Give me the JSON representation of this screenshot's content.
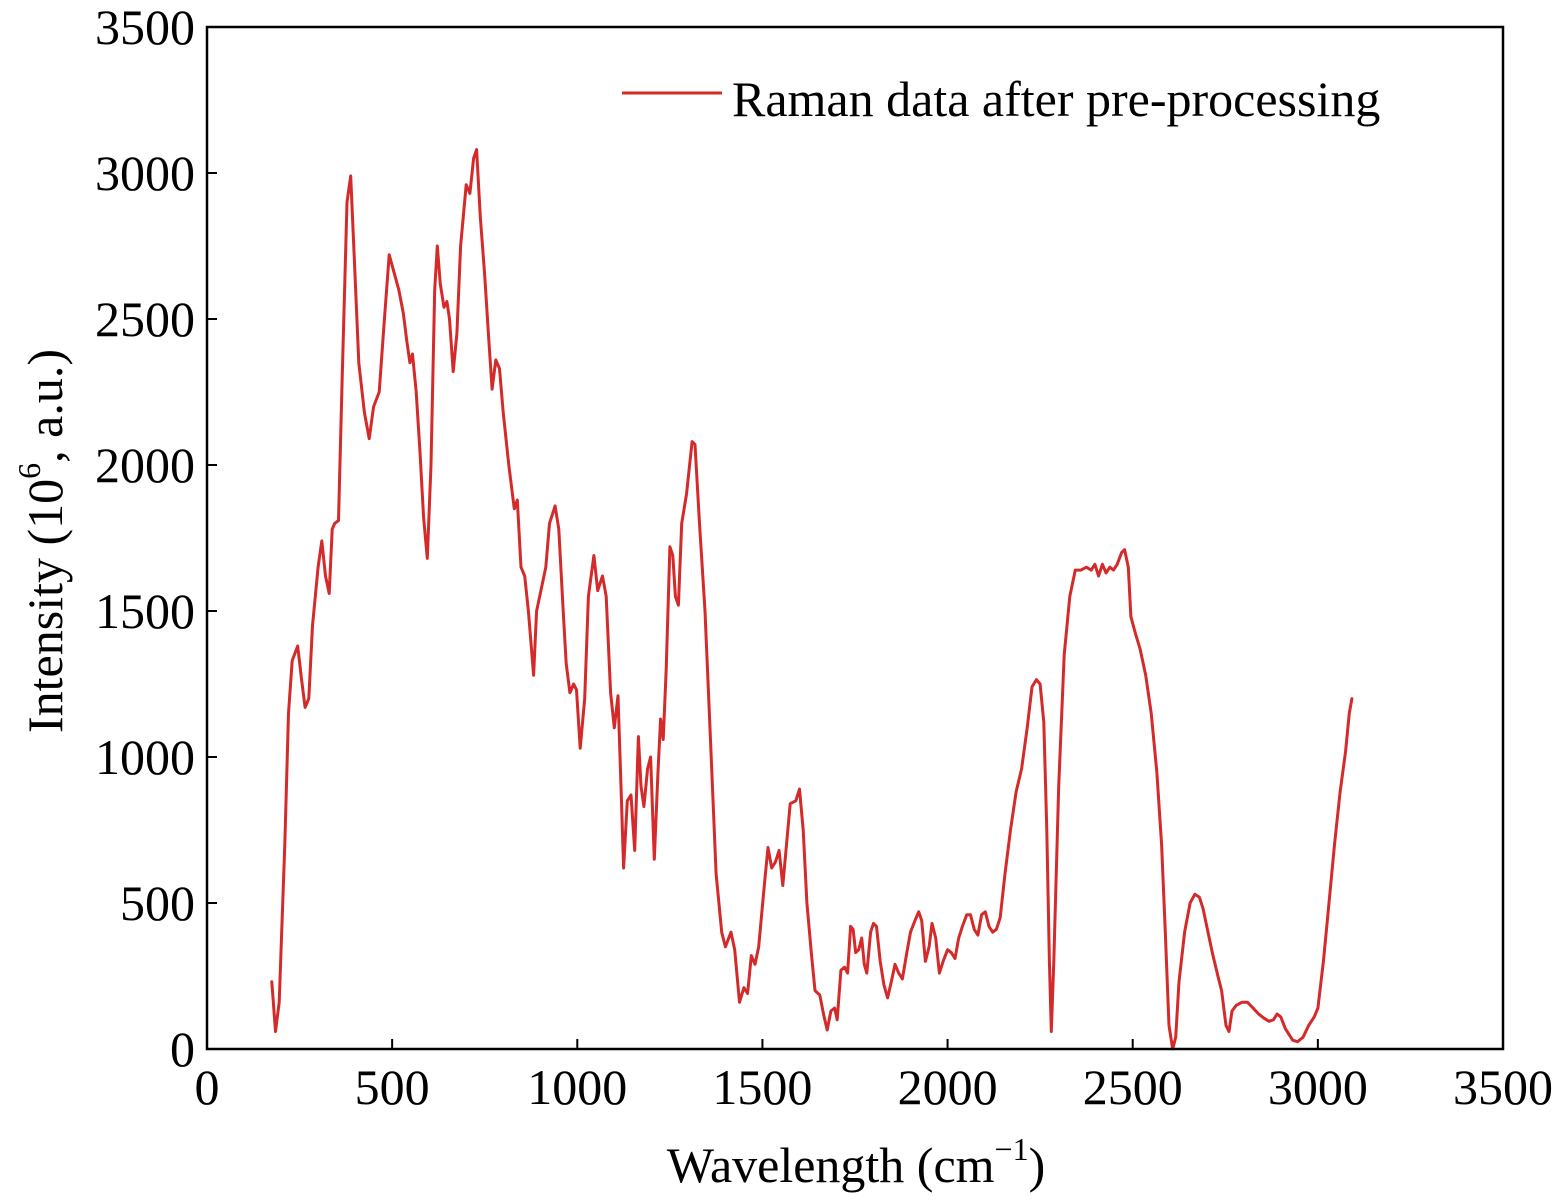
{
  "chart_data": {
    "type": "line",
    "xlabel": "Wavelength (cm",
    "xlabel_sup": "−1",
    "xlabel_end": ")",
    "ylabel": "Intensity (10",
    "ylabel_sup": "6",
    "ylabel_end": ", a.u.)",
    "xlim": [
      0,
      3500
    ],
    "ylim": [
      0,
      3500
    ],
    "xticks": [
      0,
      500,
      1000,
      1500,
      2000,
      2500,
      3000,
      3500
    ],
    "yticks": [
      0,
      500,
      1000,
      1500,
      2000,
      2500,
      3000,
      3500
    ],
    "grid": false,
    "legend_position": "top-right",
    "series": [
      {
        "name": "Raman data after pre-processing",
        "color": "#d42a2a",
        "points": [
          [
            175,
            230
          ],
          [
            185,
            60
          ],
          [
            195,
            160
          ],
          [
            210,
            700
          ],
          [
            220,
            1150
          ],
          [
            230,
            1330
          ],
          [
            245,
            1380
          ],
          [
            255,
            1270
          ],
          [
            265,
            1170
          ],
          [
            275,
            1200
          ],
          [
            285,
            1450
          ],
          [
            300,
            1650
          ],
          [
            310,
            1740
          ],
          [
            320,
            1620
          ],
          [
            330,
            1560
          ],
          [
            338,
            1780
          ],
          [
            345,
            1800
          ],
          [
            355,
            1810
          ],
          [
            365,
            2300
          ],
          [
            378,
            2900
          ],
          [
            388,
            2990
          ],
          [
            398,
            2700
          ],
          [
            410,
            2350
          ],
          [
            425,
            2180
          ],
          [
            438,
            2090
          ],
          [
            450,
            2200
          ],
          [
            465,
            2250
          ],
          [
            478,
            2480
          ],
          [
            492,
            2720
          ],
          [
            505,
            2660
          ],
          [
            518,
            2600
          ],
          [
            530,
            2520
          ],
          [
            540,
            2420
          ],
          [
            548,
            2350
          ],
          [
            555,
            2380
          ],
          [
            565,
            2250
          ],
          [
            575,
            2050
          ],
          [
            585,
            1820
          ],
          [
            595,
            1680
          ],
          [
            605,
            2000
          ],
          [
            615,
            2600
          ],
          [
            622,
            2750
          ],
          [
            630,
            2620
          ],
          [
            640,
            2540
          ],
          [
            648,
            2560
          ],
          [
            655,
            2500
          ],
          [
            665,
            2320
          ],
          [
            675,
            2450
          ],
          [
            685,
            2750
          ],
          [
            700,
            2960
          ],
          [
            710,
            2930
          ],
          [
            720,
            3050
          ],
          [
            728,
            3080
          ],
          [
            738,
            2850
          ],
          [
            750,
            2650
          ],
          [
            760,
            2450
          ],
          [
            770,
            2260
          ],
          [
            780,
            2360
          ],
          [
            790,
            2330
          ],
          [
            800,
            2180
          ],
          [
            815,
            2000
          ],
          [
            830,
            1850
          ],
          [
            838,
            1880
          ],
          [
            848,
            1650
          ],
          [
            858,
            1620
          ],
          [
            868,
            1500
          ],
          [
            882,
            1280
          ],
          [
            890,
            1500
          ],
          [
            900,
            1560
          ],
          [
            915,
            1650
          ],
          [
            925,
            1800
          ],
          [
            940,
            1860
          ],
          [
            950,
            1780
          ],
          [
            962,
            1500
          ],
          [
            970,
            1320
          ],
          [
            980,
            1220
          ],
          [
            990,
            1250
          ],
          [
            998,
            1230
          ],
          [
            1008,
            1030
          ],
          [
            1020,
            1200
          ],
          [
            1030,
            1550
          ],
          [
            1045,
            1690
          ],
          [
            1055,
            1570
          ],
          [
            1068,
            1620
          ],
          [
            1078,
            1550
          ],
          [
            1090,
            1220
          ],
          [
            1100,
            1100
          ],
          [
            1110,
            1210
          ],
          [
            1118,
            900
          ],
          [
            1125,
            620
          ],
          [
            1135,
            850
          ],
          [
            1145,
            870
          ],
          [
            1155,
            680
          ],
          [
            1165,
            1070
          ],
          [
            1172,
            900
          ],
          [
            1180,
            830
          ],
          [
            1190,
            960
          ],
          [
            1198,
            1000
          ],
          [
            1208,
            650
          ],
          [
            1218,
            950
          ],
          [
            1225,
            1130
          ],
          [
            1232,
            1060
          ],
          [
            1240,
            1300
          ],
          [
            1250,
            1720
          ],
          [
            1258,
            1690
          ],
          [
            1265,
            1550
          ],
          [
            1273,
            1520
          ],
          [
            1282,
            1800
          ],
          [
            1295,
            1900
          ],
          [
            1310,
            2080
          ],
          [
            1318,
            2070
          ],
          [
            1330,
            1800
          ],
          [
            1345,
            1500
          ],
          [
            1360,
            1050
          ],
          [
            1375,
            600
          ],
          [
            1390,
            400
          ],
          [
            1400,
            350
          ],
          [
            1415,
            400
          ],
          [
            1425,
            340
          ],
          [
            1438,
            160
          ],
          [
            1450,
            210
          ],
          [
            1460,
            190
          ],
          [
            1470,
            320
          ],
          [
            1480,
            290
          ],
          [
            1490,
            350
          ],
          [
            1505,
            560
          ],
          [
            1515,
            690
          ],
          [
            1525,
            620
          ],
          [
            1535,
            640
          ],
          [
            1545,
            680
          ],
          [
            1555,
            560
          ],
          [
            1565,
            700
          ],
          [
            1575,
            840
          ],
          [
            1590,
            850
          ],
          [
            1600,
            890
          ],
          [
            1610,
            750
          ],
          [
            1620,
            500
          ],
          [
            1632,
            330
          ],
          [
            1642,
            200
          ],
          [
            1655,
            185
          ],
          [
            1665,
            120
          ],
          [
            1675,
            65
          ],
          [
            1685,
            130
          ],
          [
            1695,
            140
          ],
          [
            1702,
            100
          ],
          [
            1712,
            270
          ],
          [
            1722,
            280
          ],
          [
            1730,
            260
          ],
          [
            1738,
            420
          ],
          [
            1745,
            410
          ],
          [
            1752,
            330
          ],
          [
            1760,
            340
          ],
          [
            1768,
            380
          ],
          [
            1775,
            290
          ],
          [
            1782,
            260
          ],
          [
            1792,
            400
          ],
          [
            1800,
            430
          ],
          [
            1808,
            420
          ],
          [
            1818,
            300
          ],
          [
            1828,
            220
          ],
          [
            1838,
            175
          ],
          [
            1848,
            230
          ],
          [
            1858,
            290
          ],
          [
            1868,
            260
          ],
          [
            1878,
            240
          ],
          [
            1890,
            330
          ],
          [
            1900,
            400
          ],
          [
            1912,
            440
          ],
          [
            1922,
            470
          ],
          [
            1930,
            440
          ],
          [
            1940,
            300
          ],
          [
            1950,
            350
          ],
          [
            1958,
            430
          ],
          [
            1968,
            380
          ],
          [
            1978,
            260
          ],
          [
            1988,
            300
          ],
          [
            2000,
            340
          ],
          [
            2010,
            330
          ],
          [
            2020,
            310
          ],
          [
            2030,
            380
          ],
          [
            2040,
            420
          ],
          [
            2052,
            460
          ],
          [
            2062,
            460
          ],
          [
            2072,
            410
          ],
          [
            2082,
            390
          ],
          [
            2092,
            460
          ],
          [
            2102,
            470
          ],
          [
            2112,
            420
          ],
          [
            2122,
            400
          ],
          [
            2132,
            410
          ],
          [
            2142,
            450
          ],
          [
            2155,
            600
          ],
          [
            2170,
            750
          ],
          [
            2185,
            880
          ],
          [
            2200,
            960
          ],
          [
            2215,
            1100
          ],
          [
            2228,
            1240
          ],
          [
            2240,
            1265
          ],
          [
            2250,
            1250
          ],
          [
            2260,
            1120
          ],
          [
            2268,
            750
          ],
          [
            2275,
            300
          ],
          [
            2280,
            60
          ],
          [
            2287,
            300
          ],
          [
            2300,
            900
          ],
          [
            2315,
            1350
          ],
          [
            2330,
            1550
          ],
          [
            2345,
            1640
          ],
          [
            2360,
            1640
          ],
          [
            2375,
            1650
          ],
          [
            2388,
            1640
          ],
          [
            2398,
            1660
          ],
          [
            2408,
            1620
          ],
          [
            2418,
            1660
          ],
          [
            2428,
            1630
          ],
          [
            2438,
            1650
          ],
          [
            2448,
            1640
          ],
          [
            2458,
            1660
          ],
          [
            2470,
            1700
          ],
          [
            2478,
            1710
          ],
          [
            2488,
            1650
          ],
          [
            2495,
            1480
          ],
          [
            2508,
            1420
          ],
          [
            2520,
            1370
          ],
          [
            2535,
            1280
          ],
          [
            2550,
            1150
          ],
          [
            2565,
            950
          ],
          [
            2578,
            700
          ],
          [
            2588,
            400
          ],
          [
            2598,
            80
          ],
          [
            2608,
            0
          ],
          [
            2616,
            40
          ],
          [
            2625,
            230
          ],
          [
            2640,
            400
          ],
          [
            2655,
            500
          ],
          [
            2668,
            530
          ],
          [
            2680,
            520
          ],
          [
            2690,
            480
          ],
          [
            2700,
            420
          ],
          [
            2715,
            330
          ],
          [
            2730,
            250
          ],
          [
            2740,
            200
          ],
          [
            2752,
            80
          ],
          [
            2760,
            60
          ],
          [
            2768,
            130
          ],
          [
            2780,
            150
          ],
          [
            2795,
            160
          ],
          [
            2810,
            160
          ],
          [
            2825,
            140
          ],
          [
            2840,
            120
          ],
          [
            2855,
            105
          ],
          [
            2868,
            95
          ],
          [
            2880,
            100
          ],
          [
            2890,
            120
          ],
          [
            2900,
            110
          ],
          [
            2912,
            70
          ],
          [
            2922,
            50
          ],
          [
            2932,
            30
          ],
          [
            2945,
            25
          ],
          [
            2960,
            40
          ],
          [
            2975,
            80
          ],
          [
            2990,
            110
          ],
          [
            3000,
            140
          ],
          [
            3015,
            300
          ],
          [
            3030,
            500
          ],
          [
            3045,
            700
          ],
          [
            3060,
            880
          ],
          [
            3075,
            1020
          ],
          [
            3085,
            1150
          ],
          [
            3092,
            1200
          ]
        ]
      }
    ]
  }
}
